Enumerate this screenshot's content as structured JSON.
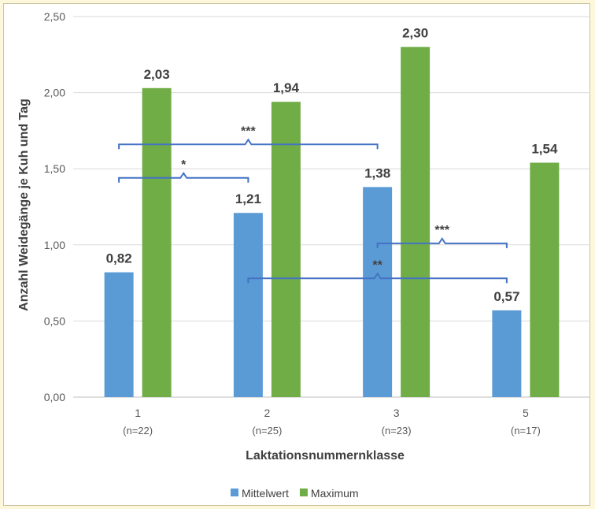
{
  "chart_data": {
    "type": "bar",
    "categories": [
      "1",
      "2",
      "3",
      "5"
    ],
    "category_sublabels": [
      "(n=22)",
      "(n=25)",
      "(n=23)",
      "(n=17)"
    ],
    "series": [
      {
        "name": "Mittelwert",
        "values": [
          0.82,
          1.21,
          1.38,
          0.57
        ],
        "labels": [
          "0,82",
          "1,21",
          "1,38",
          "0,57"
        ],
        "color": "#5b9bd5"
      },
      {
        "name": "Maximum",
        "values": [
          2.03,
          1.94,
          2.3,
          1.54
        ],
        "labels": [
          "2,03",
          "1,94",
          "2,30",
          "1,54"
        ],
        "color": "#70ad47"
      }
    ],
    "xlabel": "Laktationsnummernklasse",
    "ylabel": "Anzahl Weidegänge je Kuh und Tag",
    "ylim": [
      0,
      2.5
    ],
    "yticks": [
      0,
      0.5,
      1.0,
      1.5,
      2.0,
      2.5
    ],
    "ytick_labels": [
      "0,00",
      "0,50",
      "1,00",
      "1,50",
      "2,00",
      "2,50"
    ],
    "grid": true,
    "legend_position": "bottom",
    "significance_brackets": [
      {
        "from_category": "1",
        "to_category": "3",
        "level": 1.66,
        "label": "***"
      },
      {
        "from_category": "1",
        "to_category": "2",
        "level": 1.44,
        "label": "*"
      },
      {
        "from_category": "3",
        "to_category": "5",
        "level": 1.01,
        "label": "***"
      },
      {
        "from_category": "2",
        "to_category": "5",
        "level": 0.78,
        "label": "**"
      }
    ],
    "bracket_color": "#4472c4"
  }
}
